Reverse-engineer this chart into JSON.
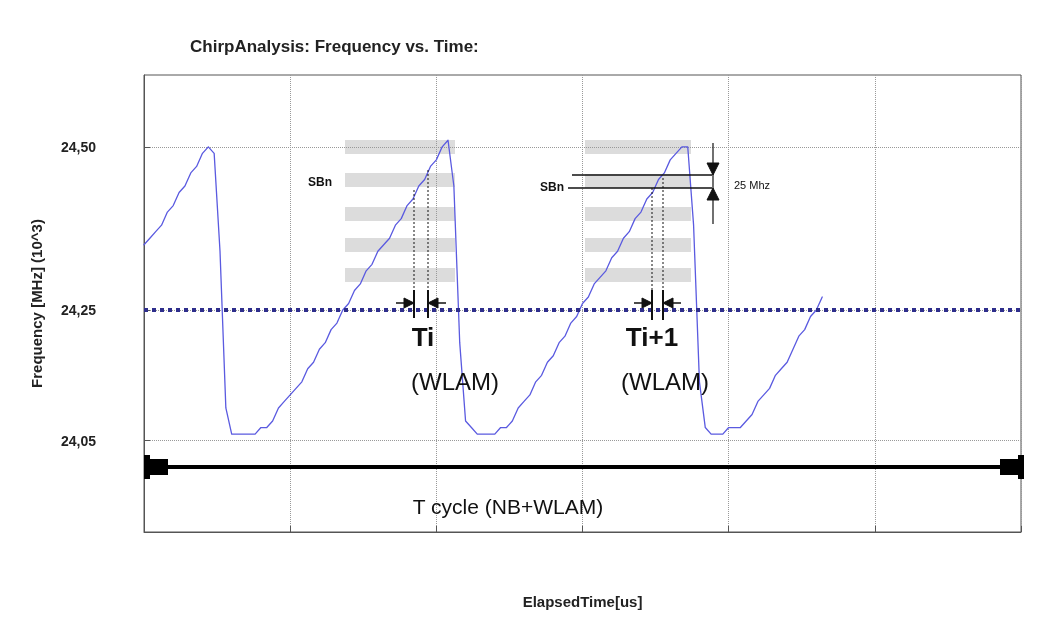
{
  "chart_data": {
    "type": "line",
    "title": "ChirpAnalysis: Frequency vs. Time:",
    "xlabel": "ElapsedTime[us]",
    "ylabel": "Frequency [MHz] (10^3)",
    "categories": [
      null,
      null,
      null,
      null,
      null,
      null,
      null,
      null,
      null,
      null,
      null,
      null,
      null,
      null,
      null,
      null,
      null,
      null,
      null,
      null,
      null,
      null,
      null,
      null,
      null,
      null,
      null,
      null,
      null,
      null,
      null,
      null,
      null,
      null,
      null,
      null,
      null,
      null,
      null,
      null,
      null,
      null,
      null,
      null,
      null,
      null,
      null,
      null,
      null,
      null,
      null,
      null,
      null,
      null,
      null,
      null,
      null,
      null,
      null,
      null,
      null,
      null,
      null,
      null,
      null,
      null,
      null,
      null,
      null,
      null,
      null,
      null,
      null,
      null,
      null,
      null,
      null,
      null,
      null,
      null,
      null,
      null,
      null,
      null,
      null,
      null,
      null,
      null,
      null,
      null,
      null,
      null,
      null,
      null,
      null,
      null,
      null,
      null,
      null,
      null,
      null,
      null,
      null,
      null,
      null,
      null,
      null,
      null,
      null,
      null,
      null,
      null,
      null,
      null,
      null,
      null,
      null,
      null,
      null,
      null,
      null,
      null,
      null,
      null,
      null,
      null,
      null,
      null,
      null,
      null,
      null,
      null,
      null,
      null,
      null,
      null,
      null,
      null,
      null,
      null,
      null,
      null,
      null,
      null,
      null,
      null,
      null,
      null,
      null,
      null,
      null
    ],
    "series": [
      {
        "color": "#5a5ae0",
        "values": [
          24.35,
          24.36,
          24.37,
          24.38,
          24.4,
          24.41,
          24.43,
          24.44,
          24.46,
          24.47,
          24.49,
          24.5,
          24.49,
          24.34,
          24.1,
          24.06,
          24.06,
          24.06,
          24.06,
          24.06,
          24.07,
          24.07,
          24.08,
          24.1,
          24.11,
          24.12,
          24.13,
          24.14,
          24.16,
          24.17,
          24.19,
          24.2,
          24.22,
          24.23,
          24.25,
          24.26,
          24.28,
          24.29,
          24.31,
          24.32,
          24.34,
          24.35,
          24.36,
          24.38,
          24.39,
          24.41,
          24.42,
          24.44,
          24.45,
          24.47,
          24.48,
          24.5,
          24.51,
          24.44,
          24.2,
          24.08,
          24.07,
          24.06,
          24.06,
          24.06,
          24.06,
          24.07,
          24.07,
          24.08,
          24.1,
          24.11,
          24.12,
          24.14,
          24.15,
          24.17,
          24.18,
          24.2,
          24.21,
          24.23,
          24.24,
          24.26,
          24.27,
          24.29,
          24.3,
          24.31,
          24.33,
          24.34,
          24.36,
          24.37,
          24.39,
          24.4,
          24.42,
          24.43,
          24.45,
          24.46,
          24.48,
          24.49,
          24.5,
          24.5,
          24.38,
          24.14,
          24.07,
          24.06,
          24.06,
          24.06,
          24.07,
          24.07,
          24.07,
          24.08,
          24.09,
          24.11,
          24.12,
          24.13,
          24.15,
          24.16,
          24.17,
          24.19,
          24.21,
          24.22,
          24.24,
          24.25,
          24.27,
          null,
          null,
          null,
          null,
          null,
          null,
          null,
          null,
          null,
          null,
          null,
          null,
          null,
          null,
          null,
          null,
          null,
          null,
          null,
          null,
          null,
          null,
          null,
          null,
          null,
          null,
          null,
          null,
          null,
          null,
          null,
          null,
          null,
          null
        ]
      }
    ],
    "ylim": [
      23.91,
      24.61
    ],
    "yticks": [
      {
        "value": 24.05,
        "label": "24,05"
      },
      {
        "value": 24.25,
        "label": "24,25"
      },
      {
        "value": 24.5,
        "label": "24,50"
      }
    ],
    "tick_labels": "y",
    "grid": true,
    "line_style": "solid",
    "ref_lines": [
      {
        "axis": "y",
        "value": 24.25,
        "color": "#2e2e8c",
        "line_style": "dotted"
      }
    ],
    "annotations": [
      "SBn",
      "SBn",
      "25 Mhz",
      "Ti",
      "(WLAM)",
      "Ti+1",
      "(WLAM)",
      "T cycle (NB+WLAM)"
    ]
  }
}
